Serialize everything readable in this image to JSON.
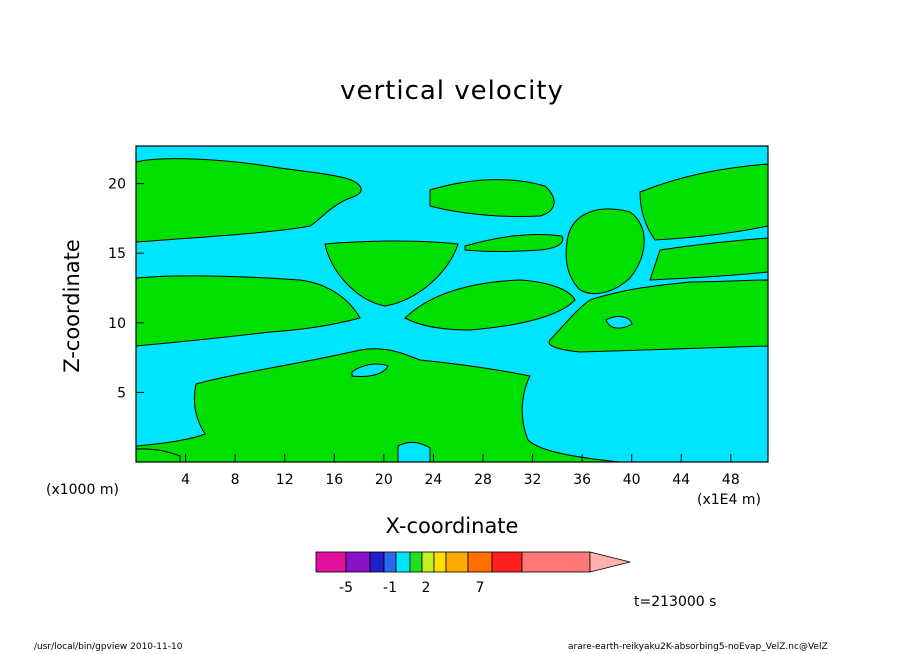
{
  "chart_data": {
    "type": "heatmap",
    "title": "vertical velocity",
    "xlabel": "X-coordinate",
    "ylabel": "Z-coordinate",
    "x_unit": "(x1E4 m)",
    "y_unit": "(x1000 m)",
    "xlim": [
      0,
      51
    ],
    "ylim": [
      0,
      22.7
    ],
    "x_ticks": [
      4,
      8,
      12,
      16,
      20,
      24,
      28,
      32,
      36,
      40,
      44,
      48
    ],
    "y_ticks": [
      5,
      10,
      15,
      20
    ],
    "colorbar": {
      "labels": [
        {
          "text": "-5",
          "pos": -5
        },
        {
          "text": "-1",
          "pos": -1
        },
        {
          "text": "2",
          "pos": 2
        },
        {
          "text": "7",
          "pos": 7
        }
      ],
      "colors": [
        "#e0109c",
        "#8a12c8",
        "#2020c8",
        "#2a6af0",
        "#00e4ff",
        "#20e020",
        "#c8f020",
        "#ffe000",
        "#ffa800",
        "#ff7000",
        "#ff2020",
        "#ff7878"
      ],
      "extend_color": "#ffb0b0"
    },
    "field_colors": {
      "negative": "#00e5ff",
      "positive": "#00e000"
    },
    "time_label": "t=213000 s"
  },
  "footer": {
    "left": "/usr/local/bin/gpview   2010-11-10",
    "right": "arare-earth-reikyaku2K-absorbing5-noEvap_VelZ.nc@VelZ"
  }
}
